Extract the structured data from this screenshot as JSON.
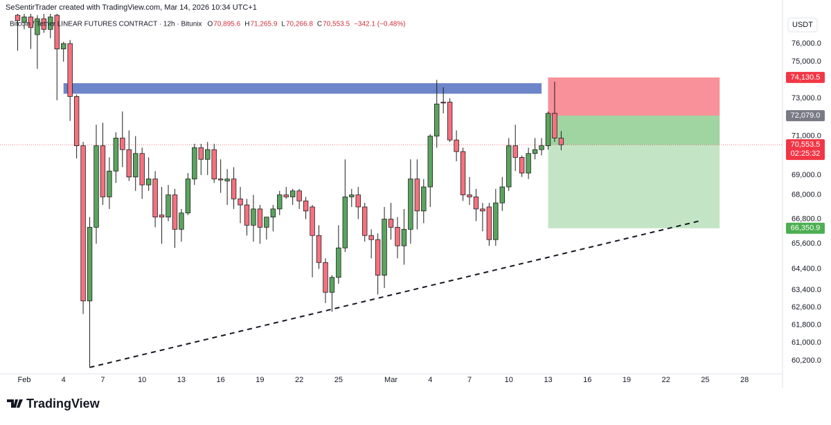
{
  "header": {
    "credit": "SeSentirTrader created with TradingView.com, Mar 14, 2026 10:34 UTC+1",
    "symbol": "Bitcoin / Tether LINEAR FUTURES CONTRACT · 12h · Bitunix",
    "ohlc": [
      {
        "key": "O",
        "value": "70,895.6"
      },
      {
        "key": "H",
        "value": "71,265.9"
      },
      {
        "key": "L",
        "value": "70,266.8"
      },
      {
        "key": "C",
        "value": "70,553.5"
      }
    ],
    "change": "−342.1 (−0.48%)",
    "currency": "USDT",
    "brand": "TradingView"
  },
  "chart_data": {
    "type": "candlestick",
    "x": [
      -0.5,
      0,
      0.5,
      1,
      1.5,
      2,
      2.5,
      3,
      3.5,
      4,
      4.5,
      5,
      5.5,
      6,
      6.5,
      7,
      7.5,
      8,
      8.5,
      9,
      9.5,
      10,
      10.5,
      11,
      11.5,
      12,
      12.5,
      13,
      13.5,
      14,
      14.5,
      15,
      15.5,
      16,
      16.5,
      17,
      17.5,
      18,
      18.5,
      19,
      19.5,
      20,
      20.5,
      21,
      21.5,
      22,
      22.5,
      23,
      23.5,
      24,
      24.5,
      25,
      25.5,
      26,
      26.5,
      27,
      27.5,
      28,
      28.5,
      29,
      29.5,
      30,
      30.5,
      31,
      31.5,
      32,
      32.5,
      33,
      33.5,
      34,
      34.5,
      35,
      35.5,
      36,
      36.5,
      37,
      37.5,
      38,
      38.5,
      39,
      39.5,
      40,
      40.5,
      41
    ],
    "open": [
      77600,
      77200,
      77500,
      76500,
      77400,
      76800,
      77600,
      75700,
      76000,
      73100,
      70500,
      62900,
      66400,
      70500,
      67900,
      69200,
      70900,
      70300,
      68900,
      70100,
      68500,
      68800,
      67000,
      66900,
      68000,
      66300,
      67100,
      68800,
      70400,
      69800,
      70300,
      68800,
      68700,
      68800,
      67800,
      67500,
      66500,
      67300,
      66400,
      66900,
      67300,
      68000,
      67900,
      68200,
      67700,
      67400,
      66000,
      64700,
      63300,
      64000,
      65400,
      67900,
      68000,
      67400,
      66000,
      65800,
      64100,
      66800,
      66400,
      65500,
      66300,
      68800,
      67200,
      68400,
      71000,
      72800,
      72800,
      70800,
      70200,
      68000,
      67900,
      67300,
      67400,
      65800,
      67600,
      68400,
      70500,
      69900,
      69100,
      70100,
      70300,
      70500,
      72200,
      70895.6
    ],
    "high": [
      77900,
      77800,
      77900,
      77600,
      77900,
      77700,
      77900,
      76100,
      76200,
      73200,
      70700,
      66900,
      71600,
      71700,
      69900,
      71200,
      72300,
      71300,
      71000,
      70400,
      69900,
      69200,
      68400,
      68500,
      68300,
      67300,
      69100,
      70600,
      70600,
      70700,
      70600,
      69800,
      69300,
      69400,
      68400,
      67800,
      68000,
      67500,
      66900,
      67500,
      68200,
      68400,
      68300,
      68300,
      67900,
      67500,
      66500,
      64900,
      64100,
      66500,
      69800,
      68300,
      68400,
      67600,
      66300,
      66100,
      67400,
      67600,
      66900,
      67300,
      69800,
      69800,
      68800,
      71100,
      74000,
      73600,
      73000,
      71300,
      70400,
      68900,
      68300,
      67600,
      67600,
      68300,
      68900,
      70900,
      71600,
      70000,
      70400,
      70900,
      70900,
      72300,
      73900,
      71265.9
    ],
    "low": [
      75600,
      76800,
      75700,
      74600,
      76600,
      76300,
      72900,
      75000,
      71800,
      69850,
      62300,
      59900,
      65600,
      67500,
      67300,
      68600,
      69400,
      68700,
      68200,
      67800,
      68200,
      66400,
      65600,
      66700,
      65400,
      65700,
      67000,
      68500,
      69000,
      69000,
      68600,
      68100,
      67500,
      67300,
      66600,
      66000,
      65700,
      65600,
      65800,
      66200,
      67000,
      67800,
      67500,
      67300,
      66800,
      64000,
      64400,
      62800,
      62400,
      63700,
      65200,
      67400,
      66800,
      65700,
      64900,
      63200,
      63500,
      65800,
      64900,
      64600,
      65600,
      66300,
      66600,
      67400,
      70400,
      72200,
      70700,
      69700,
      67700,
      67500,
      66700,
      66200,
      65500,
      65500,
      67200,
      68200,
      69200,
      68900,
      68800,
      69800,
      70000,
      70300,
      70700,
      70266.8
    ],
    "close": [
      77300,
      77500,
      76900,
      77400,
      76800,
      77500,
      75700,
      76000,
      73100,
      70500,
      62900,
      66400,
      70500,
      67900,
      69200,
      70900,
      70300,
      68900,
      70100,
      68500,
      68800,
      66900,
      66900,
      68000,
      66300,
      67100,
      68800,
      70400,
      69800,
      70300,
      68800,
      68750,
      68800,
      67800,
      67500,
      66500,
      67300,
      66400,
      66900,
      67300,
      68000,
      67900,
      68200,
      67700,
      67200,
      66000,
      64700,
      63300,
      64000,
      65400,
      67900,
      68000,
      67400,
      66000,
      65800,
      64100,
      66800,
      66400,
      65500,
      66300,
      68800,
      67200,
      68400,
      71000,
      72700,
      72750,
      70800,
      70200,
      68000,
      67900,
      67300,
      67200,
      65800,
      67600,
      68400,
      70500,
      69900,
      69100,
      70100,
      70300,
      70500,
      72200,
      70900,
      70553.5
    ],
    "up_color": "#5ba45f",
    "down_color": "#f5717f",
    "border_color": "#1c1c1c",
    "log_scale": true,
    "grid": false,
    "xlim": [
      -1.85,
      57.9
    ],
    "ylim": [
      59620,
      77680
    ],
    "xticks": [
      {
        "value": 0,
        "label": "Feb"
      },
      {
        "value": 3,
        "label": "4"
      },
      {
        "value": 6,
        "label": "7"
      },
      {
        "value": 9,
        "label": "10"
      },
      {
        "value": 12,
        "label": "13"
      },
      {
        "value": 15,
        "label": "16"
      },
      {
        "value": 18,
        "label": "19"
      },
      {
        "value": 21,
        "label": "22"
      },
      {
        "value": 24,
        "label": "25"
      },
      {
        "value": 28,
        "label": "Mar"
      },
      {
        "value": 31,
        "label": "4"
      },
      {
        "value": 34,
        "label": "7"
      },
      {
        "value": 37,
        "label": "10"
      },
      {
        "value": 40,
        "label": "13"
      },
      {
        "value": 43,
        "label": "16"
      },
      {
        "value": 46,
        "label": "19"
      },
      {
        "value": 49,
        "label": "22"
      },
      {
        "value": 52,
        "label": "25"
      },
      {
        "value": 55,
        "label": "28"
      }
    ],
    "yticks": [
      {
        "value": 76000,
        "label": "76,000.0"
      },
      {
        "value": 75000,
        "label": "75,000.0"
      },
      {
        "value": 73000,
        "label": "73,000.0"
      },
      {
        "value": 71000,
        "label": "71,000.0"
      },
      {
        "value": 69000,
        "label": "69,000.0"
      },
      {
        "value": 68000,
        "label": "68,000.0"
      },
      {
        "value": 66800,
        "label": "66,800.0"
      },
      {
        "value": 65600,
        "label": "65,600.0"
      },
      {
        "value": 64400,
        "label": "64,400.0"
      },
      {
        "value": 63400,
        "label": "63,400.0"
      },
      {
        "value": 62600,
        "label": "62,600.0"
      },
      {
        "value": 61800,
        "label": "61,800.0"
      },
      {
        "value": 61000,
        "label": "61,000.0"
      },
      {
        "value": 60200,
        "label": "60,200.0"
      }
    ],
    "zone": {
      "x": [
        3,
        39.5
      ],
      "y": [
        73250,
        73820
      ],
      "color": "#5470c0"
    },
    "position": {
      "x": [
        40,
        53.1
      ],
      "stop": {
        "value": 74130.5,
        "label": "74,130.5",
        "color": "#f23645"
      },
      "entry": {
        "value": 72079.0,
        "label": "72,079.0",
        "color": "#787b86"
      },
      "target": {
        "value": 66350.9,
        "label": "66,350.9",
        "color": "#4caf50"
      }
    },
    "last_price": {
      "value": 70553.5,
      "label": "70,553.5",
      "countdown": "02:25:32",
      "color": "#f23645"
    },
    "trendline": {
      "x": [
        5,
        51.5
      ],
      "y": [
        59900,
        66700
      ]
    }
  }
}
